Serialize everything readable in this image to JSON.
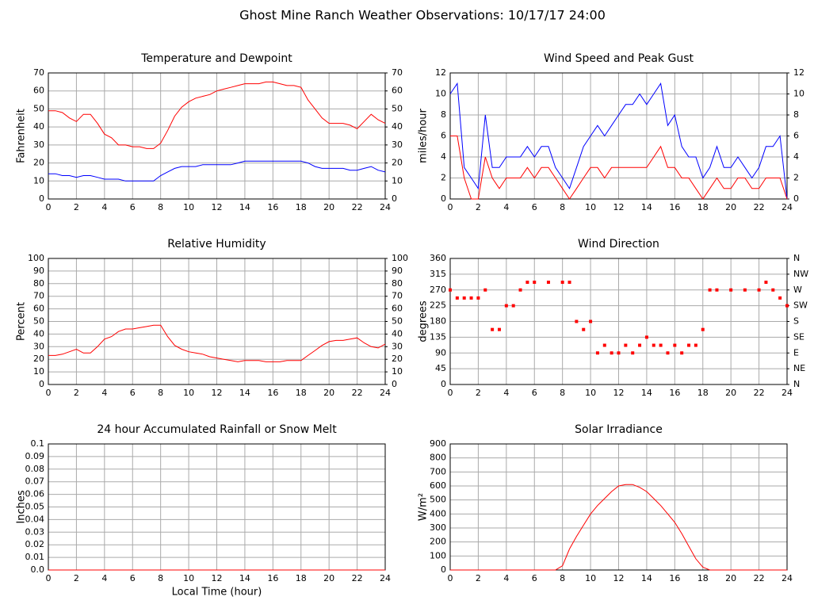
{
  "title": "Ghost Mine Ranch Weather Observations: 10/17/17 24:00",
  "chart_data": [
    {
      "type": "line",
      "title": "Temperature and Dewpoint",
      "y_label": "Fahrenheit",
      "x": [
        0,
        0.5,
        1,
        1.5,
        2,
        2.5,
        3,
        3.5,
        4,
        4.5,
        5,
        5.5,
        6,
        6.5,
        7,
        7.5,
        8,
        8.5,
        9,
        9.5,
        10,
        10.5,
        11,
        11.5,
        12,
        12.5,
        13,
        13.5,
        14,
        14.5,
        15,
        15.5,
        16,
        16.5,
        17,
        17.5,
        18,
        18.5,
        19,
        19.5,
        20,
        20.5,
        21,
        21.5,
        22,
        22.5,
        23,
        23.5,
        24
      ],
      "series": [
        {
          "color": "#ff0000",
          "values": [
            49,
            49,
            48,
            45,
            43,
            47,
            47,
            42,
            36,
            34,
            30,
            30,
            29,
            29,
            28,
            28,
            31,
            38,
            46,
            51,
            54,
            56,
            57,
            58,
            60,
            61,
            62,
            63,
            64,
            64,
            64,
            65,
            65,
            64,
            63,
            63,
            62,
            55,
            50,
            45,
            42,
            42,
            42,
            41,
            39,
            43,
            47,
            44,
            42
          ]
        },
        {
          "color": "#0000ff",
          "values": [
            14,
            14,
            13,
            13,
            12,
            13,
            13,
            12,
            11,
            11,
            11,
            10,
            10,
            10,
            10,
            10,
            13,
            15,
            17,
            18,
            18,
            18,
            19,
            19,
            19,
            19,
            19,
            20,
            21,
            21,
            21,
            21,
            21,
            21,
            21,
            21,
            21,
            20,
            18,
            17,
            17,
            17,
            17,
            16,
            16,
            17,
            18,
            16,
            15
          ]
        }
      ],
      "xlim": [
        0,
        24
      ],
      "xticks": [
        0,
        2,
        4,
        6,
        8,
        10,
        12,
        14,
        16,
        18,
        20,
        22,
        24
      ],
      "ylim": [
        0,
        70
      ],
      "yticks": [
        0,
        10,
        20,
        30,
        40,
        50,
        60,
        70
      ],
      "y2lim": [
        0,
        70
      ],
      "y2ticks": [
        0,
        10,
        20,
        30,
        40,
        50,
        60,
        70
      ],
      "grid": true
    },
    {
      "type": "line",
      "title": "Wind Speed and Peak Gust",
      "y_label": "miles/hour",
      "x": [
        0,
        0.5,
        1,
        1.5,
        2,
        2.5,
        3,
        3.5,
        4,
        4.5,
        5,
        5.5,
        6,
        6.5,
        7,
        7.5,
        8,
        8.5,
        9,
        9.5,
        10,
        10.5,
        11,
        11.5,
        12,
        12.5,
        13,
        13.5,
        14,
        14.5,
        15,
        15.5,
        16,
        16.5,
        17,
        17.5,
        18,
        18.5,
        19,
        19.5,
        20,
        20.5,
        21,
        21.5,
        22,
        22.5,
        23,
        23.5,
        24
      ],
      "series": [
        {
          "color": "#0000ff",
          "values": [
            10,
            11,
            3,
            2,
            1,
            8,
            3,
            3,
            4,
            4,
            4,
            5,
            4,
            5,
            5,
            3,
            2,
            1,
            3,
            5,
            6,
            7,
            6,
            7,
            8,
            9,
            9,
            10,
            9,
            10,
            11,
            7,
            8,
            5,
            4,
            4,
            2,
            3,
            5,
            3,
            3,
            4,
            3,
            2,
            3,
            5,
            5,
            6,
            0
          ]
        },
        {
          "color": "#ff0000",
          "values": [
            6,
            6,
            2,
            0,
            0,
            4,
            2,
            1,
            2,
            2,
            2,
            3,
            2,
            3,
            3,
            2,
            1,
            0,
            1,
            2,
            3,
            3,
            2,
            3,
            3,
            3,
            3,
            3,
            3,
            4,
            5,
            3,
            3,
            2,
            2,
            1,
            0,
            1,
            2,
            1,
            1,
            2,
            2,
            1,
            1,
            2,
            2,
            2,
            0
          ]
        }
      ],
      "xlim": [
        0,
        24
      ],
      "xticks": [
        0,
        2,
        4,
        6,
        8,
        10,
        12,
        14,
        16,
        18,
        20,
        22,
        24
      ],
      "ylim": [
        0,
        12
      ],
      "yticks": [
        0,
        2,
        4,
        6,
        8,
        10,
        12
      ],
      "y2lim": [
        0,
        12
      ],
      "y2ticks": [
        0,
        2,
        4,
        6,
        8,
        10,
        12
      ],
      "grid": true
    },
    {
      "type": "line",
      "title": "Relative Humidity",
      "y_label": "Percent",
      "x": [
        0,
        0.5,
        1,
        1.5,
        2,
        2.5,
        3,
        3.5,
        4,
        4.5,
        5,
        5.5,
        6,
        6.5,
        7,
        7.5,
        8,
        8.5,
        9,
        9.5,
        10,
        10.5,
        11,
        11.5,
        12,
        12.5,
        13,
        13.5,
        14,
        14.5,
        15,
        15.5,
        16,
        16.5,
        17,
        17.5,
        18,
        18.5,
        19,
        19.5,
        20,
        20.5,
        21,
        21.5,
        22,
        22.5,
        23,
        23.5,
        24
      ],
      "values": [
        23,
        23,
        24,
        26,
        28,
        25,
        25,
        30,
        36,
        38,
        42,
        44,
        44,
        45,
        46,
        47,
        47,
        38,
        31,
        28,
        26,
        25,
        24,
        22,
        21,
        20,
        19,
        18,
        19,
        19,
        19,
        18,
        18,
        18,
        19,
        19,
        19,
        23,
        27,
        31,
        34,
        35,
        35,
        36,
        37,
        33,
        30,
        29,
        32
      ],
      "color": "#ff0000",
      "xlim": [
        0,
        24
      ],
      "xticks": [
        0,
        2,
        4,
        6,
        8,
        10,
        12,
        14,
        16,
        18,
        20,
        22,
        24
      ],
      "ylim": [
        0,
        100
      ],
      "yticks": [
        0,
        10,
        20,
        30,
        40,
        50,
        60,
        70,
        80,
        90,
        100
      ],
      "y2lim": [
        0,
        100
      ],
      "y2ticks": [
        0,
        10,
        20,
        30,
        40,
        50,
        60,
        70,
        80,
        90,
        100
      ],
      "grid": true
    },
    {
      "type": "scatter",
      "title": "Wind Direction",
      "y_label": "degrees",
      "x": [
        0,
        0.5,
        1,
        1.5,
        2,
        2.5,
        3,
        3.5,
        4,
        4.5,
        5,
        5.5,
        6,
        7,
        8,
        8.5,
        9,
        9.5,
        10,
        10.5,
        11,
        11.5,
        12,
        12.5,
        13,
        13.5,
        14,
        14.5,
        15,
        15.5,
        16,
        16.5,
        17,
        17.5,
        18,
        18.5,
        19,
        20,
        21,
        22,
        22.5,
        23,
        23.5,
        24
      ],
      "values": [
        270,
        247,
        247,
        247,
        247,
        270,
        157,
        157,
        225,
        225,
        270,
        292,
        292,
        292,
        292,
        292,
        180,
        157,
        180,
        90,
        112,
        90,
        90,
        112,
        90,
        112,
        135,
        112,
        112,
        90,
        112,
        90,
        112,
        112,
        157,
        270,
        270,
        270,
        270,
        270,
        292,
        270,
        247,
        225
      ],
      "color": "#ff0000",
      "xlim": [
        0,
        24
      ],
      "xticks": [
        0,
        2,
        4,
        6,
        8,
        10,
        12,
        14,
        16,
        18,
        20,
        22,
        24
      ],
      "ylim": [
        0,
        360
      ],
      "yticks": [
        0,
        45,
        90,
        135,
        180,
        225,
        270,
        315,
        360
      ],
      "y2lim": [
        0,
        360
      ],
      "y2ticks": [
        {
          "value": 0,
          "label": "N"
        },
        {
          "value": 45,
          "label": "NE"
        },
        {
          "value": 90,
          "label": "E"
        },
        {
          "value": 135,
          "label": "SE"
        },
        {
          "value": 180,
          "label": "S"
        },
        {
          "value": 225,
          "label": "SW"
        },
        {
          "value": 270,
          "label": "W"
        },
        {
          "value": 315,
          "label": "NW"
        },
        {
          "value": 360,
          "label": "N"
        }
      ],
      "grid": true
    },
    {
      "type": "line",
      "title": "24 hour Accumulated Rainfall or Snow Melt",
      "y_label": "Inches",
      "x_label": "Local Time (hour)",
      "x": [
        0,
        24
      ],
      "values": [
        0,
        0
      ],
      "color": "#ff0000",
      "xlim": [
        0,
        24
      ],
      "xticks": [
        0,
        2,
        4,
        6,
        8,
        10,
        12,
        14,
        16,
        18,
        20,
        22,
        24
      ],
      "ylim": [
        0,
        0.1
      ],
      "yticks": [
        {
          "value": 0,
          "label": "0.0"
        },
        0.01,
        0.02,
        0.03,
        0.04,
        0.05,
        0.06,
        0.07,
        0.08,
        0.09,
        0.1
      ],
      "grid": true
    },
    {
      "type": "line",
      "title": "Solar Irradiance",
      "y_label": "W/m²",
      "x": [
        0,
        0.5,
        1,
        1.5,
        2,
        2.5,
        3,
        3.5,
        4,
        4.5,
        5,
        5.5,
        6,
        6.5,
        7,
        7.5,
        8,
        8.5,
        9,
        9.5,
        10,
        10.5,
        11,
        11.5,
        12,
        12.5,
        13,
        13.5,
        14,
        14.5,
        15,
        15.5,
        16,
        16.5,
        17,
        17.5,
        18,
        18.5,
        19,
        19.5,
        20,
        20.5,
        21,
        21.5,
        22,
        22.5,
        23,
        23.5,
        24
      ],
      "values": [
        0,
        0,
        0,
        0,
        0,
        0,
        0,
        0,
        0,
        0,
        0,
        0,
        0,
        0,
        0,
        0,
        30,
        150,
        240,
        320,
        400,
        460,
        510,
        560,
        600,
        610,
        610,
        590,
        560,
        510,
        460,
        400,
        340,
        260,
        170,
        80,
        20,
        0,
        0,
        0,
        0,
        0,
        0,
        0,
        0,
        0,
        0,
        0,
        0
      ],
      "color": "#ff0000",
      "xlim": [
        0,
        24
      ],
      "xticks": [
        0,
        2,
        4,
        6,
        8,
        10,
        12,
        14,
        16,
        18,
        20,
        22,
        24
      ],
      "ylim": [
        0,
        900
      ],
      "yticks": [
        0,
        100,
        200,
        300,
        400,
        500,
        600,
        700,
        800,
        900
      ],
      "grid": true
    }
  ]
}
